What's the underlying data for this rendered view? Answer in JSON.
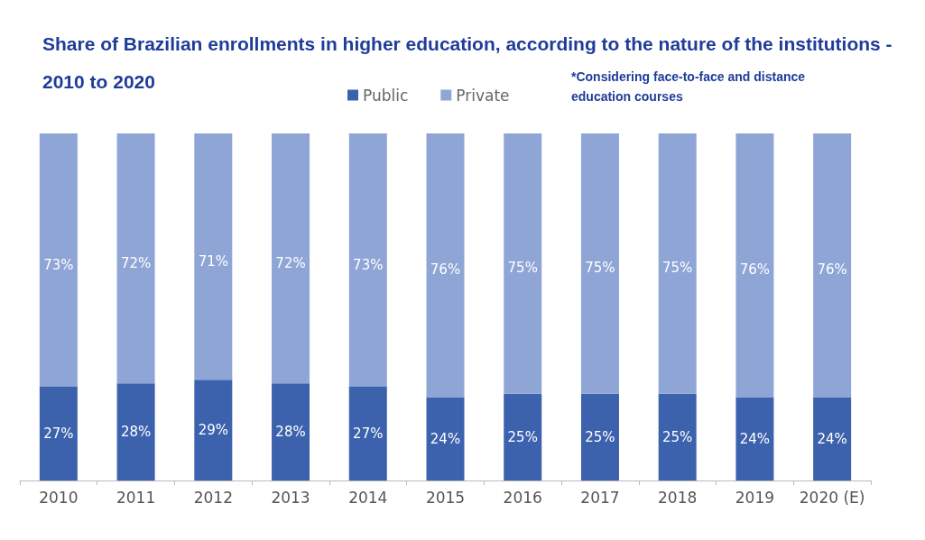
{
  "chart_data": {
    "type": "bar",
    "title": "Share of Brazilian enrollments in higher education, according to the nature of the institutions - 2010 to 2020",
    "annotations": [
      "*Considering face-to-face and distance education courses"
    ],
    "categories": [
      "2010",
      "2011",
      "2012",
      "2013",
      "2014",
      "2015",
      "2016",
      "2017",
      "2018",
      "2019",
      "2020 (E)"
    ],
    "stacked": true,
    "ylim": [
      0,
      100
    ],
    "legend": "top",
    "grid": false,
    "series": [
      {
        "name": "Public",
        "color": "#3c62ad",
        "values": [
          27,
          28,
          29,
          28,
          27,
          24,
          25,
          25,
          25,
          24,
          24
        ],
        "value_labels": [
          "27%",
          "28%",
          "29%",
          "28%",
          "27%",
          "24%",
          "25%",
          "25%",
          "25%",
          "24%",
          "24%"
        ]
      },
      {
        "name": "Private",
        "color": "#8ea5d6",
        "values": [
          73,
          72,
          71,
          72,
          73,
          76,
          75,
          75,
          75,
          76,
          76
        ],
        "value_labels": [
          "73%",
          "72%",
          "71%",
          "72%",
          "73%",
          "76%",
          "75%",
          "75%",
          "75%",
          "76%",
          "76%"
        ]
      }
    ]
  }
}
